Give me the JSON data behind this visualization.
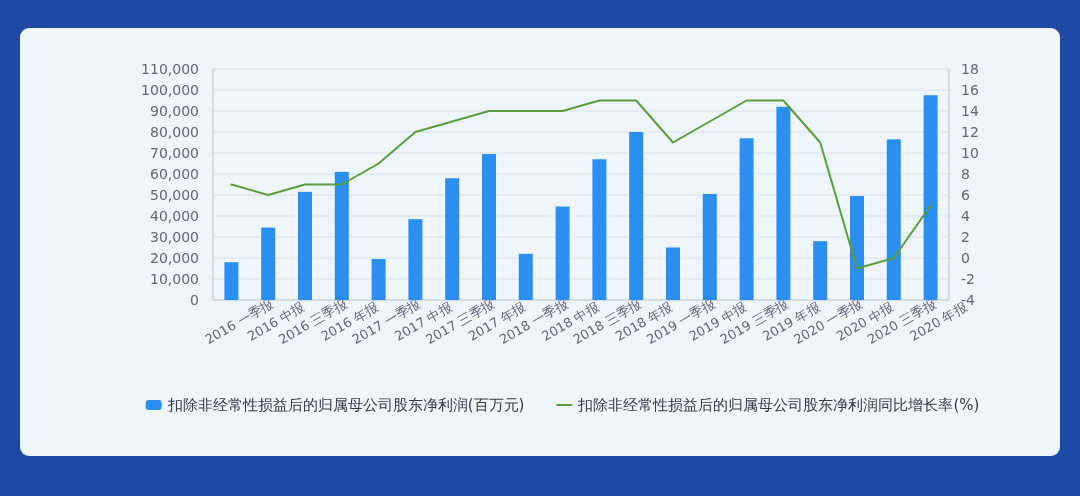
{
  "chart_data": {
    "type": "bar",
    "categories": [
      "2016 一季报",
      "2016 中报",
      "2016 三季报",
      "2016 年报",
      "2017 一季报",
      "2017 中报",
      "2017 三季报",
      "2017 年报",
      "2018 一季报",
      "2018 中报",
      "2018 三季报",
      "2018 年报",
      "2019 一季报",
      "2019 中报",
      "2019 三季报",
      "2019 年报",
      "2020 一季报",
      "2020 中报",
      "2020 三季报",
      "2020 年报"
    ],
    "series": [
      {
        "name": "扣除非经常性损益后的归属母公司股东净利润(百万元)",
        "color": "#2b8ff2",
        "values": [
          18000,
          34500,
          51500,
          61000,
          19500,
          38500,
          58000,
          69500,
          22000,
          44500,
          67000,
          80000,
          25000,
          50500,
          77000,
          92000,
          28000,
          49500,
          76500,
          97500
        ]
      },
      {
        "name": "扣除非经常性损益后的归属母公司股东净利润同比增长率(%)",
        "type": "line",
        "axis": "y2",
        "color": "#5b9e3c",
        "values": [
          7,
          6,
          7,
          7,
          9,
          12,
          13,
          14,
          14,
          14,
          15,
          15,
          11,
          13,
          15,
          15,
          11,
          -1,
          0,
          5
        ]
      }
    ],
    "ylim": [
      0,
      110000
    ],
    "yticks": [
      0,
      {
        "value": 10000,
        "label": "10,000"
      },
      {
        "value": 20000,
        "label": "20,000"
      },
      {
        "value": 30000,
        "label": "30,000"
      },
      {
        "value": 40000,
        "label": "40,000"
      },
      {
        "value": 50000,
        "label": "50,000"
      },
      {
        "value": 60000,
        "label": "60,000"
      },
      {
        "value": 70000,
        "label": "70,000"
      },
      {
        "value": 80000,
        "label": "80,000"
      },
      {
        "value": 90000,
        "label": "90,000"
      },
      {
        "value": 100000,
        "label": "100,000"
      },
      {
        "value": 110000,
        "label": "110,000"
      }
    ],
    "y2lim": [
      -4,
      18
    ],
    "y2ticks": [
      -4,
      -2,
      0,
      2,
      4,
      6,
      8,
      10,
      12,
      14,
      16,
      18
    ],
    "grid": "y",
    "legend": "bottom"
  }
}
